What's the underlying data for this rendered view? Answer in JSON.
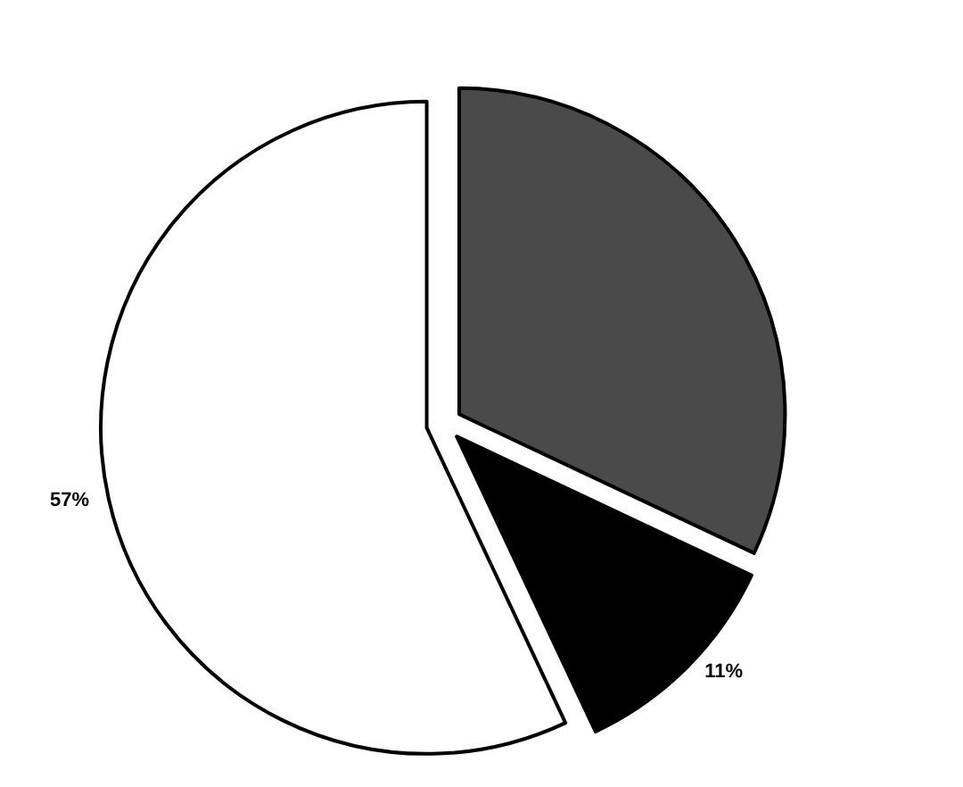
{
  "chart_data": {
    "type": "pie",
    "categories": [
      null,
      null,
      null
    ],
    "values": [
      32,
      11,
      57
    ],
    "colors": [
      "#4a4a4a",
      "#000000",
      "#ffffff"
    ],
    "value_labels": [
      null,
      "11%",
      "57%"
    ]
  }
}
